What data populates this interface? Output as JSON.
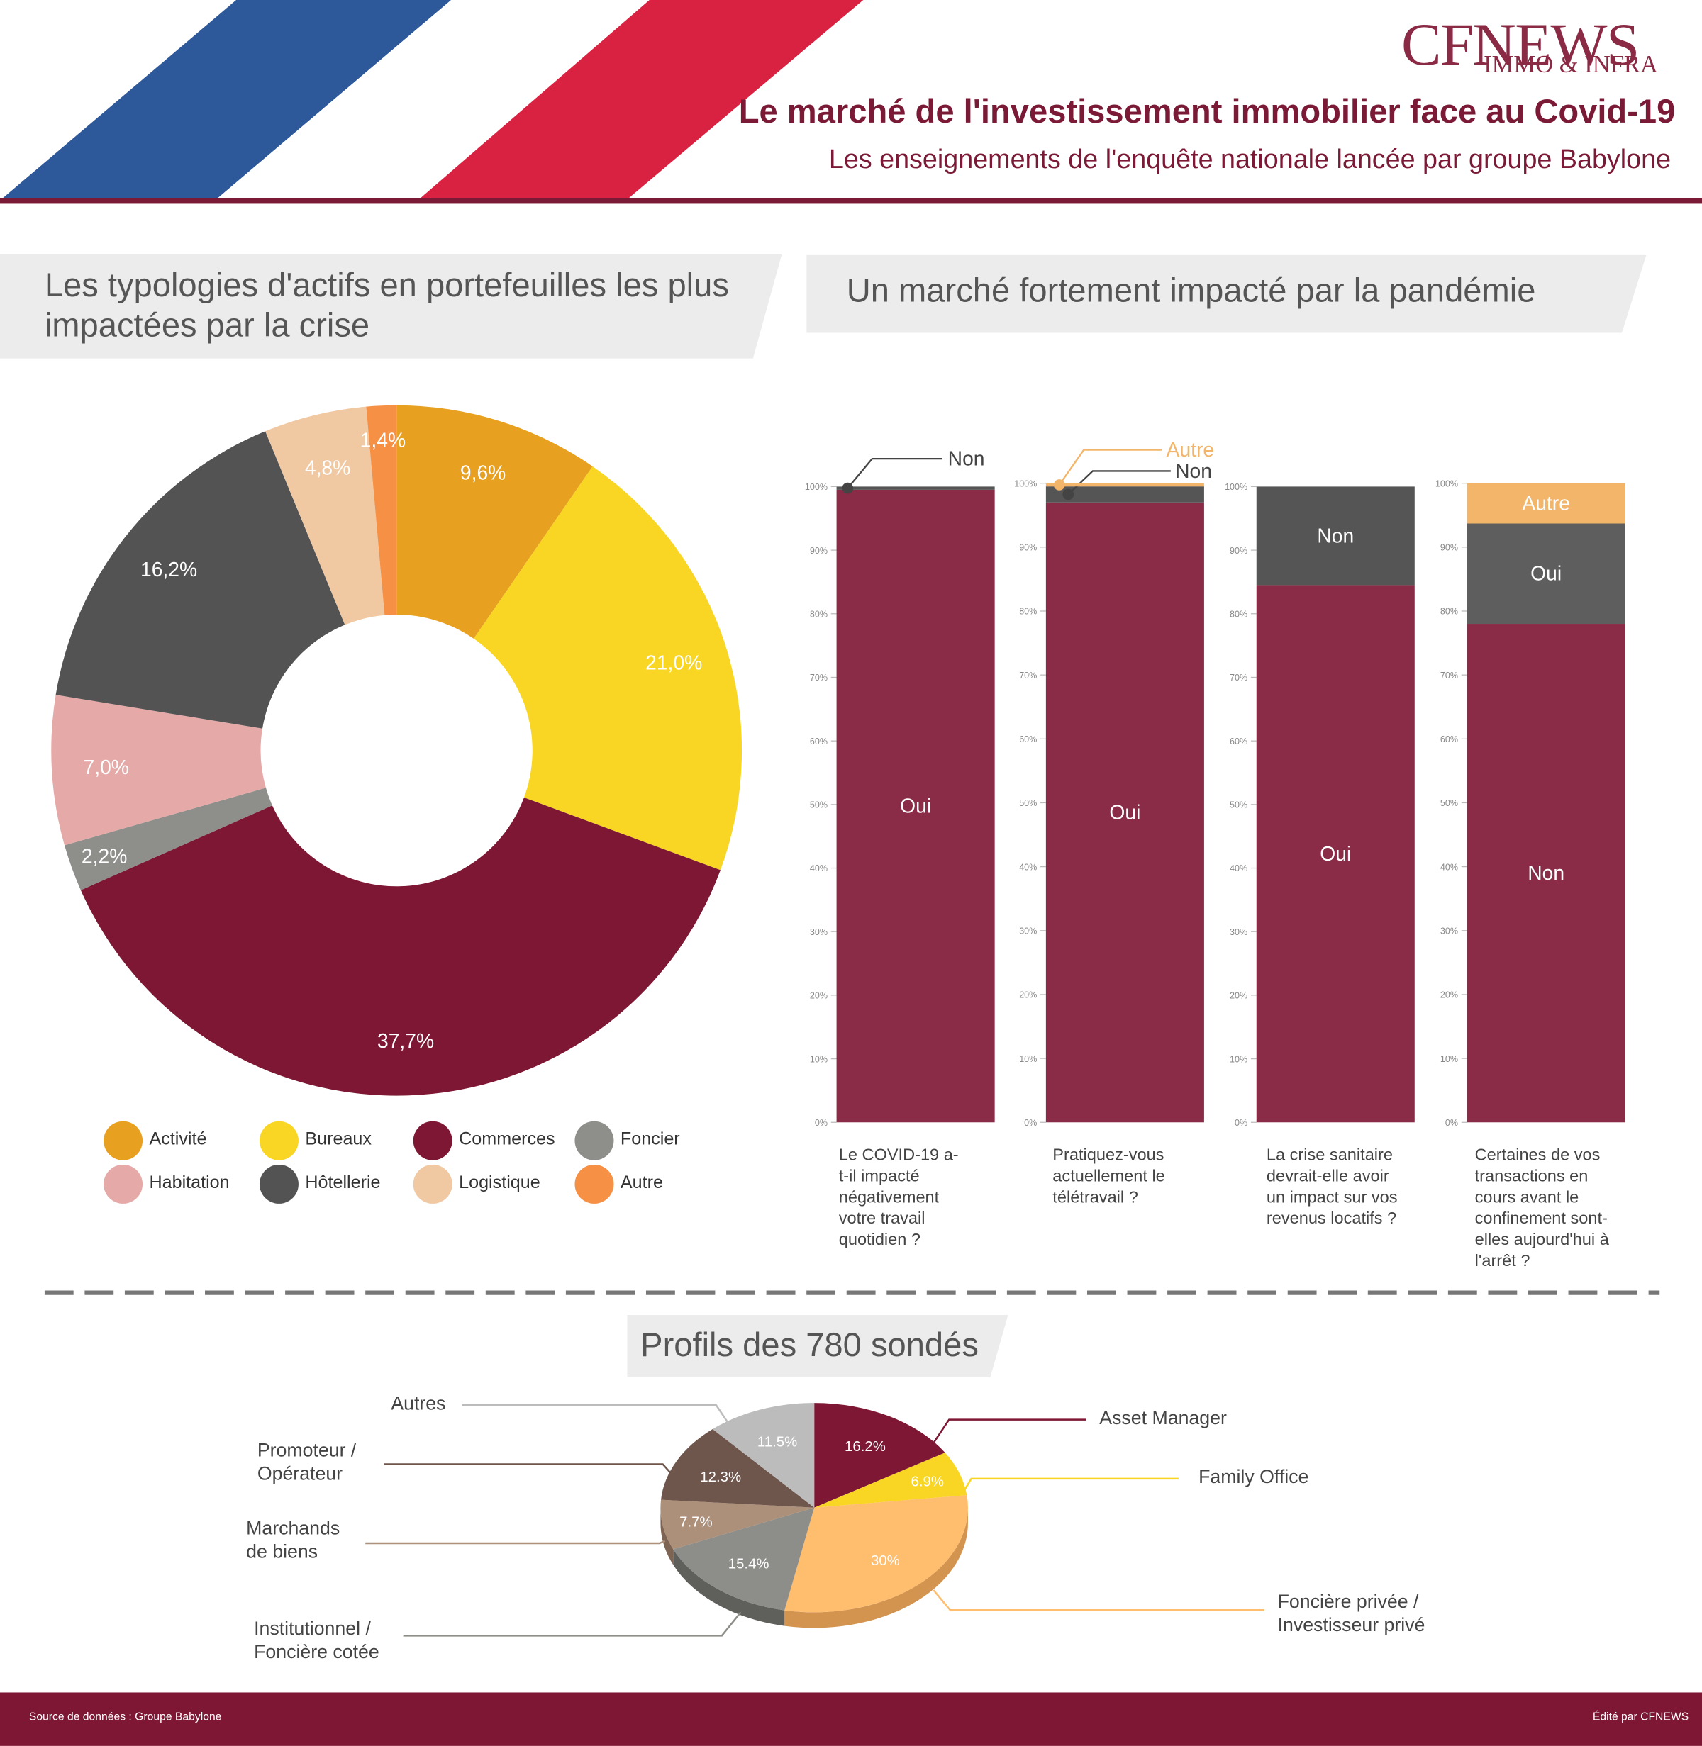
{
  "header": {
    "logo_main": "CFNEWS",
    "logo_sub": "IMMO & INFRA",
    "title": "Le marché de l'investissement immobilier face au Covid-19",
    "subtitle": "Les enseignements de l'enquête nationale lancée par groupe Babylone"
  },
  "colors": {
    "brand": "#7b1a36",
    "flag_blue": "#2d5899",
    "flag_red": "#d92241",
    "footer": "#7d1734"
  },
  "sections": {
    "left_title": "Les typologies d'actifs en portefeuilles les plus impactées par la crise",
    "right_title": "Un marché fortement impacté par la pandémie",
    "profiles_title": "Profils des 780 sondés"
  },
  "footer": {
    "source": "Source de données : Groupe Babylone",
    "edited": "Édité par CFNEWS"
  },
  "chart_data": [
    {
      "type": "pie",
      "subtype": "donut",
      "categories": [
        "Activité",
        "Bureaux",
        "Commerces",
        "Foncier",
        "Habitation",
        "Hôtellerie",
        "Logistique",
        "Autre"
      ],
      "values": [
        9.6,
        21.0,
        37.7,
        2.2,
        7.0,
        16.2,
        4.8,
        1.4
      ],
      "labels": [
        "9,6%",
        "21,0%",
        "37,7%",
        "2,2%",
        "7,0%",
        "16,2%",
        "4,8%",
        "1,4%"
      ],
      "colors": [
        "#e8a020",
        "#f8d623",
        "#7d1734",
        "#8e8e8b",
        "#e5aaa8",
        "#535353",
        "#f0c8a2",
        "#f59045"
      ],
      "legend": "bottom"
    },
    {
      "type": "bar",
      "subtype": "stacked-100",
      "y_ticks": [
        "0%",
        "10%",
        "20%",
        "30%",
        "40%",
        "50%",
        "60%",
        "70%",
        "80%",
        "90%",
        "100%"
      ],
      "ylim": [
        0,
        100
      ],
      "bars": [
        {
          "question": "Le COVID-19 a-t-il impacté négativement votre travail quotidien ?",
          "segments": [
            {
              "name": "Oui",
              "value": 99.5,
              "color": "#8a2b47"
            },
            {
              "name": "Non",
              "value": 0.5,
              "color": "#555555"
            }
          ]
        },
        {
          "question": "Pratiquez-vous actuellement le télétravail ?",
          "segments": [
            {
              "name": "Oui",
              "value": 97.0,
              "color": "#8a2b47"
            },
            {
              "name": "Non",
              "value": 2.5,
              "color": "#555555"
            },
            {
              "name": "Autre",
              "value": 0.5,
              "color": "#f2b569"
            }
          ]
        },
        {
          "question": "La crise sanitaire devrait-elle avoir un impact sur vos revenus locatifs ?",
          "segments": [
            {
              "name": "Oui",
              "value": 84.5,
              "color": "#8a2b47"
            },
            {
              "name": "Non",
              "value": 15.5,
              "color": "#555555"
            }
          ]
        },
        {
          "question": "Certaines de vos transactions en cours avant le confinement sont-elles aujourd'hui à l'arrêt ?",
          "segments": [
            {
              "name": "Non",
              "value": 78.0,
              "color": "#8a2b47"
            },
            {
              "name": "Oui",
              "value": 15.7,
              "color": "#5e5e5e"
            },
            {
              "name": "Autre",
              "value": 6.3,
              "color": "#f2b569"
            }
          ]
        }
      ]
    },
    {
      "type": "pie",
      "subtype": "3d",
      "categories": [
        "Asset Manager",
        "Family Office",
        "Foncière privée / Investisseur privé",
        "Institutionnel / Foncière cotée",
        "Marchands de biens",
        "Promoteur / Opérateur",
        "Autres"
      ],
      "values": [
        16.2,
        6.9,
        30,
        15.4,
        7.7,
        12.3,
        11.5
      ],
      "labels": [
        "16.2%",
        "6.9%",
        "30%",
        "15.4%",
        "7.7%",
        "12.3%",
        "11.5%"
      ],
      "colors": [
        "#7d1734",
        "#f8d623",
        "#ffbd6e",
        "#8d8d89",
        "#ad9079",
        "#6e564c",
        "#bcbcbc"
      ],
      "side_colors": [
        "#551024",
        "#c9a91a",
        "#d39450",
        "#5f5f5c",
        "#7e6553",
        "#4b3a33",
        "#8d8d8d"
      ]
    }
  ]
}
